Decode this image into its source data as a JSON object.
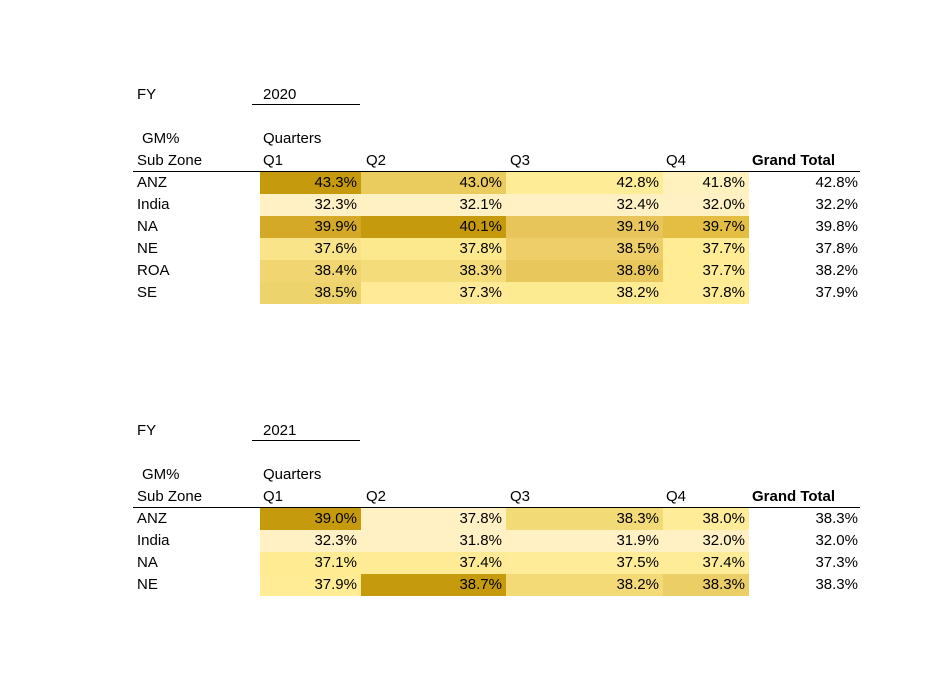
{
  "tables": [
    {
      "fy_label": "FY",
      "fy_value": "2020",
      "measure_label": "GM%",
      "row_header": "Sub Zone",
      "column_group_label": "Quarters",
      "columns": [
        "Q1",
        "Q2",
        "Q3",
        "Q4"
      ],
      "grand_total_label": "Grand Total",
      "rows": [
        {
          "label": "ANZ",
          "values": [
            "43.3%",
            "43.0%",
            "42.8%",
            "41.8%"
          ],
          "total": "42.8%",
          "colors": [
            "#C59A0C",
            "#EACC5E",
            "#FFEC96",
            "#FFF2BE"
          ]
        },
        {
          "label": "India",
          "values": [
            "32.3%",
            "32.1%",
            "32.4%",
            "32.0%"
          ],
          "total": "32.2%",
          "colors": [
            "#FFF1C4",
            "#FFF1C4",
            "#FFF1C4",
            "#FFF1C4"
          ]
        },
        {
          "label": "NA",
          "values": [
            "39.9%",
            "40.1%",
            "39.1%",
            "39.7%"
          ],
          "total": "39.8%",
          "colors": [
            "#D4A928",
            "#C59A0C",
            "#E7C55A",
            "#E4BE43"
          ]
        },
        {
          "label": "NE",
          "values": [
            "37.6%",
            "37.8%",
            "38.5%",
            "37.7%"
          ],
          "total": "37.8%",
          "colors": [
            "#F9E48A",
            "#FCE98D",
            "#EDCE68",
            "#FFEC94"
          ]
        },
        {
          "label": "ROA",
          "values": [
            "38.4%",
            "38.3%",
            "38.8%",
            "37.7%"
          ],
          "total": "38.2%",
          "colors": [
            "#F0D570",
            "#F5DC7A",
            "#E8C85C",
            "#FFEC94"
          ]
        },
        {
          "label": "SE",
          "values": [
            "38.5%",
            "37.3%",
            "38.2%",
            "37.8%"
          ],
          "total": "37.9%",
          "colors": [
            "#EDD36C",
            "#FFEB97",
            "#FDEB91",
            "#FFEC94"
          ]
        }
      ]
    },
    {
      "fy_label": "FY",
      "fy_value": "2021",
      "measure_label": "GM%",
      "row_header": "Sub Zone",
      "column_group_label": "Quarters",
      "columns": [
        "Q1",
        "Q2",
        "Q3",
        "Q4"
      ],
      "grand_total_label": "Grand Total",
      "rows": [
        {
          "label": "ANZ",
          "values": [
            "39.0%",
            "37.8%",
            "38.3%",
            "38.0%"
          ],
          "total": "38.3%",
          "colors": [
            "#C59A0C",
            "#FFF1C4",
            "#F2DA76",
            "#FFEC98"
          ]
        },
        {
          "label": "India",
          "values": [
            "32.3%",
            "31.8%",
            "31.9%",
            "32.0%"
          ],
          "total": "32.0%",
          "colors": [
            "#FFF1C4",
            "#FFF1C4",
            "#FFF1C4",
            "#FFF1C4"
          ]
        },
        {
          "label": "NA",
          "values": [
            "37.1%",
            "37.4%",
            "37.5%",
            "37.4%"
          ],
          "total": "37.3%",
          "colors": [
            "#FFEB92",
            "#FFEB96",
            "#FFEC98",
            "#FFEC98"
          ]
        },
        {
          "label": "NE",
          "values": [
            "37.9%",
            "38.7%",
            "38.2%",
            "38.3%"
          ],
          "total": "38.3%",
          "colors": [
            "#FFEC94",
            "#C59A0C",
            "#F3DA76",
            "#EBCE66"
          ]
        }
      ]
    }
  ]
}
